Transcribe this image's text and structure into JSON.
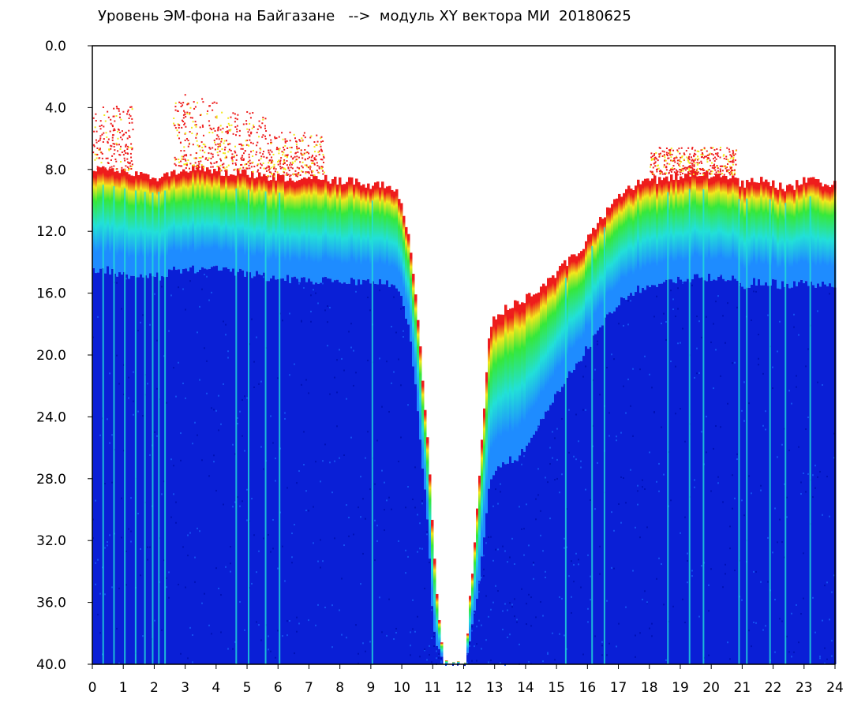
{
  "chart_data": {
    "type": "heatmap",
    "title": "Уровень ЭМ-фона на Байгазане   -->  модуль XY вектора МИ  20180625",
    "xlabel": "",
    "ylabel": "",
    "x_ticks": [
      "0",
      "1",
      "2",
      "3",
      "4",
      "5",
      "6",
      "7",
      "8",
      "9",
      "10",
      "11",
      "12",
      "13",
      "14",
      "15",
      "16",
      "17",
      "18",
      "19",
      "20",
      "21",
      "22",
      "23",
      "24"
    ],
    "y_ticks": [
      "0.0",
      "4.0",
      "8.0",
      "12.0",
      "16.0",
      "20.0",
      "24.0",
      "28.0",
      "32.0",
      "36.0",
      "40.0"
    ],
    "xlim": [
      0,
      24
    ],
    "ylim": [
      0,
      40
    ],
    "y_inverted": true,
    "grid": false,
    "colors": {
      "background": "#ffffff",
      "low": "#0a1fd6",
      "mid_low": "#1e8cff",
      "mid": "#22e0d8",
      "mid_high": "#36e83a",
      "high": "#f2e81c",
      "top": "#ee1c1c"
    },
    "boundary": {
      "hours": [
        0,
        0.5,
        1,
        1.5,
        2,
        2.5,
        3,
        4,
        5,
        6,
        7,
        8,
        9,
        9.8,
        10.2,
        10.5,
        10.8,
        11.0,
        11.3,
        11.6,
        12.0,
        12.4,
        12.8,
        13.3,
        13.8,
        14.3,
        14.8,
        15.3,
        15.8,
        16.3,
        16.8,
        17.5,
        18.5,
        19.5,
        20.5,
        21.0,
        21.5,
        22.0,
        22.5,
        23.0,
        23.5,
        24
      ],
      "top_edge": [
        8.0,
        8.0,
        8.2,
        8.4,
        8.5,
        8.3,
        7.9,
        8.1,
        8.3,
        8.5,
        8.6,
        8.7,
        9.0,
        9.2,
        12.5,
        18.0,
        25.5,
        33.0,
        40.0,
        40.0,
        40.0,
        30.0,
        18.0,
        17.0,
        16.5,
        16.0,
        15.0,
        14.0,
        13.0,
        11.5,
        10.0,
        9.0,
        8.5,
        8.2,
        8.5,
        9.0,
        8.6,
        9.0,
        9.2,
        8.7,
        8.8,
        9.0
      ],
      "blue_edge": [
        14.5,
        14.5,
        14.8,
        15.0,
        15.0,
        14.6,
        14.4,
        14.5,
        14.8,
        15.0,
        15.2,
        15.2,
        15.3,
        15.5,
        18.0,
        24.0,
        31.0,
        38.0,
        40.0,
        40.0,
        40.0,
        36.0,
        28.0,
        27.0,
        26.5,
        25.0,
        23.0,
        21.5,
        20.0,
        18.5,
        17.0,
        15.8,
        15.3,
        15.0,
        15.0,
        15.5,
        15.2,
        15.4,
        15.5,
        15.3,
        15.4,
        15.5
      ]
    },
    "bursts": [
      {
        "from": 0.0,
        "to": 1.3,
        "min": 3.8,
        "max": 8.0
      },
      {
        "from": 2.6,
        "to": 4.0,
        "min": 3.0,
        "max": 7.9
      },
      {
        "from": 4.0,
        "to": 5.6,
        "min": 4.2,
        "max": 8.1
      },
      {
        "from": 5.6,
        "to": 7.5,
        "min": 5.5,
        "max": 8.4
      },
      {
        "from": 18.0,
        "to": 20.8,
        "min": 6.5,
        "max": 8.3
      }
    ],
    "streaks": [
      0.35,
      0.7,
      1.05,
      1.4,
      1.7,
      1.95,
      2.15,
      2.35,
      4.65,
      5.05,
      5.6,
      6.05,
      9.05,
      15.3,
      16.15,
      16.55,
      18.6,
      19.3,
      19.75,
      20.9,
      21.15,
      21.9,
      22.4,
      23.2
    ]
  }
}
